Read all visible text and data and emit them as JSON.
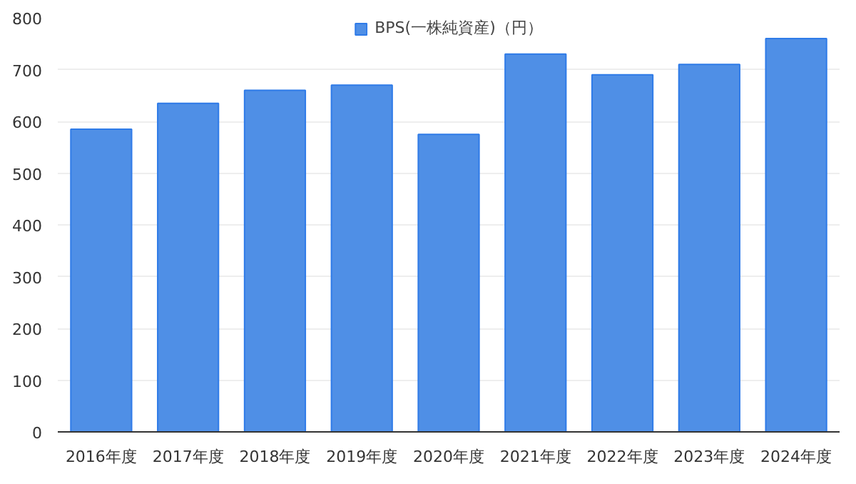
{
  "chart_data": {
    "type": "bar",
    "categories": [
      "2016年度",
      "2017年度",
      "2018年度",
      "2019年度",
      "2020年度",
      "2021年度",
      "2022年度",
      "2023年度",
      "2024年度"
    ],
    "series": [
      {
        "name": "BPS(一株純資産)（円）",
        "color": "#4f8fe6",
        "values": [
          585,
          635,
          660,
          670,
          575,
          730,
          690,
          710,
          760
        ]
      }
    ],
    "ylim": [
      0,
      800
    ],
    "yticks": [
      0,
      100,
      200,
      300,
      400,
      500,
      600,
      700,
      800
    ],
    "grid": "y",
    "legend": "top"
  }
}
